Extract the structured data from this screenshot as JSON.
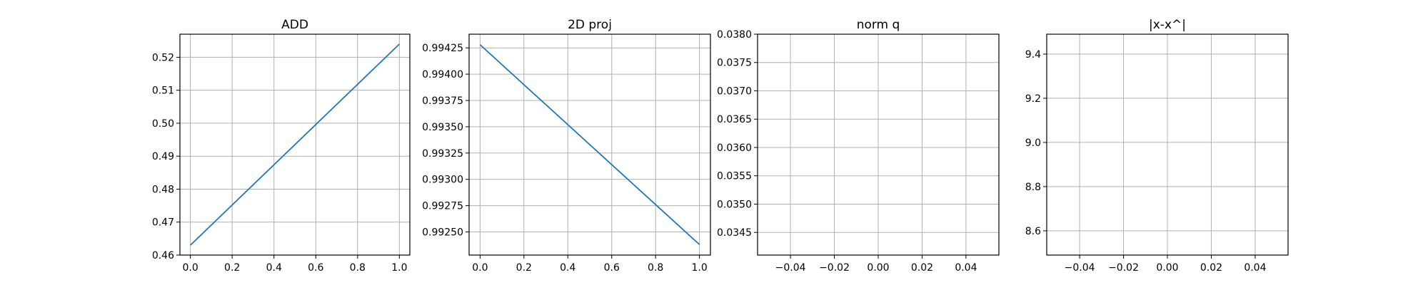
{
  "chart_data": [
    {
      "type": "line",
      "title": "ADD",
      "xlabel": "",
      "ylabel": "",
      "xlim": [
        -0.05,
        1.05
      ],
      "ylim": [
        0.46,
        0.527
      ],
      "x_ticks": [
        "0.0",
        "0.2",
        "0.4",
        "0.6",
        "0.8",
        "1.0"
      ],
      "y_ticks": [
        "0.46",
        "0.47",
        "0.48",
        "0.49",
        "0.50",
        "0.51",
        "0.52"
      ],
      "grid": true,
      "series": [
        {
          "x": [
            0,
            1
          ],
          "y": [
            0.463,
            0.524
          ],
          "color": "#1f77b4"
        }
      ]
    },
    {
      "type": "line",
      "title": "2D proj",
      "xlabel": "",
      "ylabel": "",
      "xlim": [
        -0.05,
        1.05
      ],
      "ylim": [
        0.99228,
        0.99438
      ],
      "x_ticks": [
        "0.0",
        "0.2",
        "0.4",
        "0.6",
        "0.8",
        "1.0"
      ],
      "y_ticks": [
        "0.99250",
        "0.99275",
        "0.99300",
        "0.99325",
        "0.99350",
        "0.99375",
        "0.99400",
        "0.99425"
      ],
      "grid": true,
      "series": [
        {
          "x": [
            0,
            1
          ],
          "y": [
            0.99428,
            0.99238
          ],
          "color": "#1f77b4"
        }
      ]
    },
    {
      "type": "line",
      "title": "norm q",
      "xlabel": "",
      "ylabel": "",
      "xlim": [
        -0.055,
        0.055
      ],
      "ylim": [
        0.0341,
        0.038
      ],
      "x_ticks": [
        "−0.04",
        "−0.02",
        "0.00",
        "0.02",
        "0.04"
      ],
      "y_ticks": [
        "0.0345",
        "0.0350",
        "0.0355",
        "0.0360",
        "0.0365",
        "0.0370",
        "0.0375",
        "0.0380"
      ],
      "grid": true,
      "series": []
    },
    {
      "type": "line",
      "title": "|x-x^|",
      "xlabel": "",
      "ylabel": "",
      "xlim": [
        -0.055,
        0.055
      ],
      "ylim": [
        8.49,
        9.49
      ],
      "x_ticks": [
        "−0.04",
        "−0.02",
        "0.00",
        "0.02",
        "0.04"
      ],
      "y_ticks": [
        "8.6",
        "8.8",
        "9.0",
        "9.2",
        "9.4"
      ],
      "grid": true,
      "series": []
    }
  ]
}
